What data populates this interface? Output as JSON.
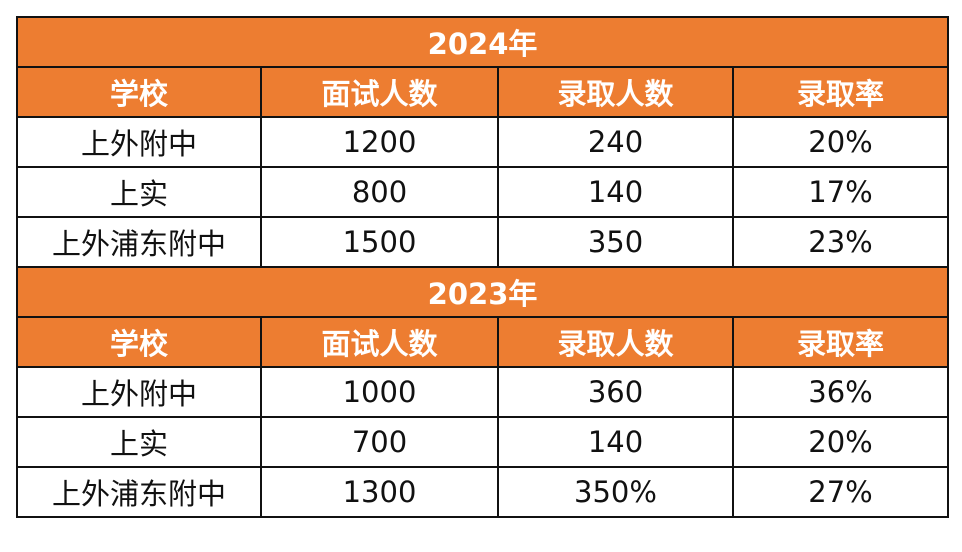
{
  "colors": {
    "header_bg": "#ED7D31",
    "header_text": "#FFFFFF"
  },
  "headers": [
    "学校",
    "面试人数",
    "录取人数",
    "录取率"
  ],
  "sections": [
    {
      "title": "2024年",
      "rows": [
        [
          "上外附中",
          "1200",
          "240",
          "20%"
        ],
        [
          "上实",
          "800",
          "140",
          "17%"
        ],
        [
          "上外浦东附中",
          "1500",
          "350",
          "23%"
        ]
      ]
    },
    {
      "title": "2023年",
      "rows": [
        [
          "上外附中",
          "1000",
          "360",
          "36%"
        ],
        [
          "上实",
          "700",
          "140",
          "20%"
        ],
        [
          "上外浦东附中",
          "1300",
          "350%",
          "27%"
        ]
      ]
    }
  ]
}
